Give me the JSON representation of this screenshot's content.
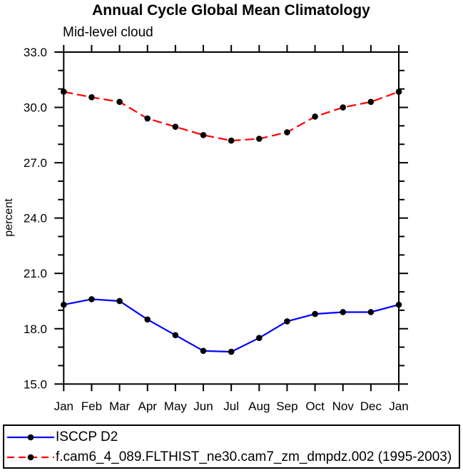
{
  "chart_data": {
    "type": "line",
    "title": "Annual Cycle Global Mean Climatology",
    "subtitle": "Mid-level cloud",
    "xlabel": "",
    "ylabel": "percent",
    "categories": [
      "Jan",
      "Feb",
      "Mar",
      "Apr",
      "May",
      "Jun",
      "Jul",
      "Aug",
      "Sep",
      "Oct",
      "Nov",
      "Dec",
      "Jan"
    ],
    "ylim": [
      15.0,
      33.0
    ],
    "ytick_major_values": [
      15.0,
      18.0,
      21.0,
      24.0,
      27.0,
      30.0,
      33.0
    ],
    "ytick_major_labels": [
      "15.0",
      "18.0",
      "21.0",
      "24.0",
      "27.0",
      "30.0",
      "33.0"
    ],
    "ytick_minor_step": 1.0,
    "grid": false,
    "legend_position": "bottom",
    "frame_color": "#000000",
    "marker": {
      "shape": "circle",
      "color": "#000000",
      "radius": 4.3
    },
    "series": [
      {
        "name": "ISCCP D2",
        "color": "#0000ff",
        "line_style": "solid",
        "values": [
          19.3,
          19.6,
          19.5,
          18.5,
          17.65,
          16.8,
          16.75,
          17.5,
          18.4,
          18.8,
          18.9,
          18.9,
          19.3
        ]
      },
      {
        "name": "f.cam6_4_089.FLTHIST_ne30.cam7_zm_dmpdz.002 (1995-2003)",
        "color": "#ff0000",
        "line_style": "dashed",
        "values": [
          30.85,
          30.55,
          30.3,
          29.4,
          28.95,
          28.5,
          28.2,
          28.3,
          28.65,
          29.5,
          30.0,
          30.3,
          30.85
        ]
      }
    ]
  }
}
